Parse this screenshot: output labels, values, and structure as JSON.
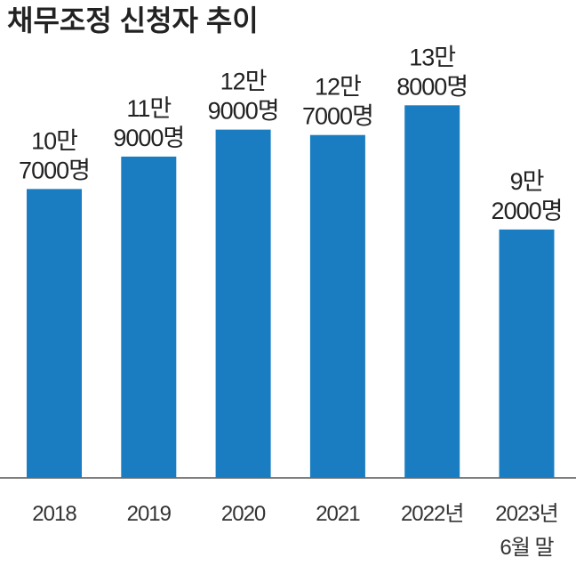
{
  "chart_data": {
    "type": "bar",
    "title": "채무조정 신청자 추이",
    "categories": [
      "2018",
      "2019",
      "2020",
      "2021",
      "2022년",
      "2023년\n6월 말"
    ],
    "values": [
      107000,
      119000,
      129000,
      127000,
      138000,
      92000
    ],
    "value_labels": [
      "10만\n7000명",
      "11만\n9000명",
      "12만\n9000명",
      "12만\n7000명",
      "13만\n8000명",
      "9만\n2000명"
    ],
    "color": "#1a7dc2",
    "ylim": [
      0,
      177000
    ]
  }
}
